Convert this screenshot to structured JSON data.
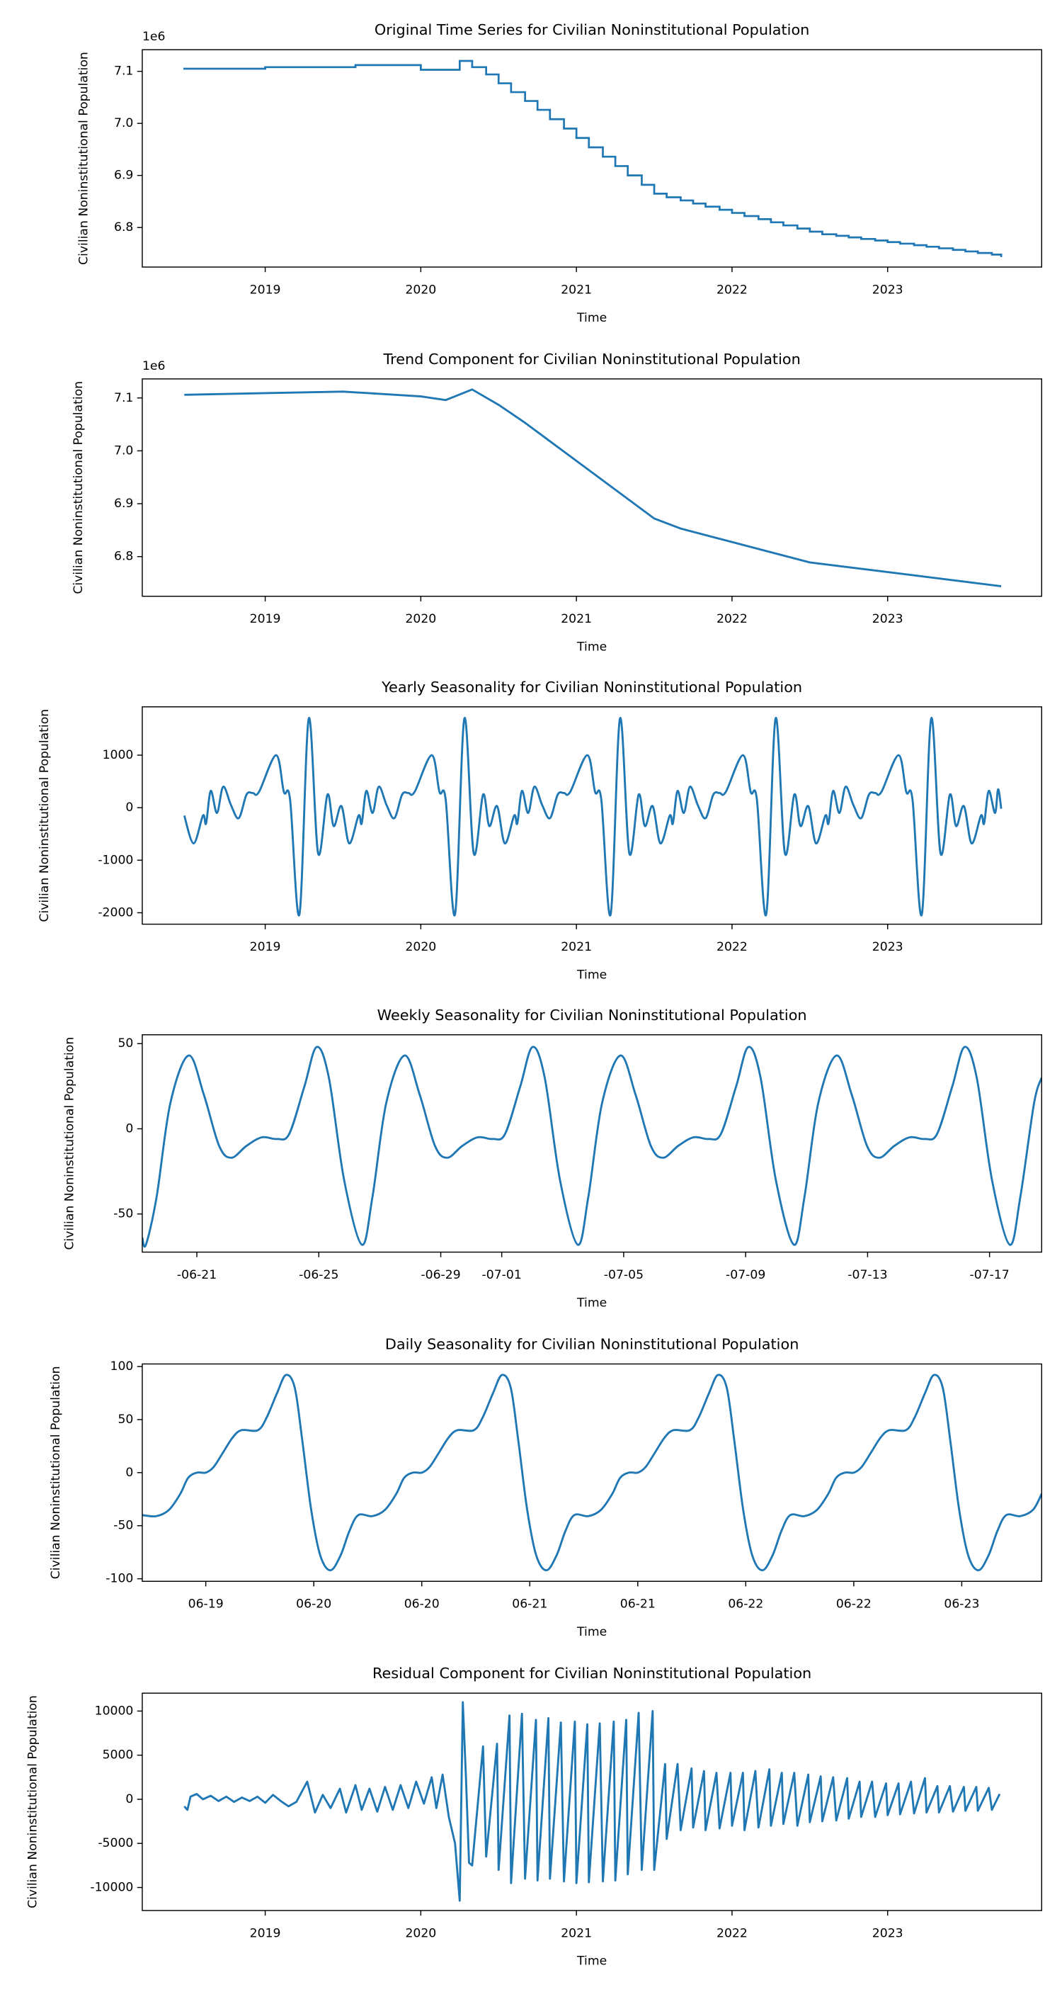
{
  "chart_data": [
    {
      "type": "line",
      "drawstyle": "steps-post",
      "title": "Original Time Series for Civilian Noninstitutional Population",
      "xlabel": "Time",
      "ylabel": "Civilian Noninstitutional Population",
      "offset_label": "1e6",
      "color": "#1f77b4",
      "x": [
        2018.48,
        2019.0,
        2019.58,
        2020.0,
        2020.25,
        2020.33,
        2020.42,
        2020.5,
        2020.58,
        2020.67,
        2020.75,
        2020.83,
        2020.92,
        2021.0,
        2021.08,
        2021.17,
        2021.25,
        2021.33,
        2021.42,
        2021.5,
        2021.58,
        2021.67,
        2021.75,
        2021.83,
        2021.92,
        2022.0,
        2022.08,
        2022.17,
        2022.25,
        2022.33,
        2022.42,
        2022.5,
        2022.58,
        2022.67,
        2022.75,
        2022.83,
        2022.92,
        2023.0,
        2023.08,
        2023.17,
        2023.25,
        2023.33,
        2023.42,
        2023.5,
        2023.58,
        2023.67,
        2023.73
      ],
      "values": [
        7.105,
        7.108,
        7.112,
        7.103,
        7.12,
        7.108,
        7.094,
        7.077,
        7.06,
        7.043,
        7.026,
        7.008,
        6.99,
        6.972,
        6.954,
        6.936,
        6.918,
        6.9,
        6.882,
        6.865,
        6.858,
        6.852,
        6.846,
        6.84,
        6.834,
        6.828,
        6.822,
        6.816,
        6.81,
        6.804,
        6.798,
        6.792,
        6.787,
        6.784,
        6.781,
        6.778,
        6.775,
        6.772,
        6.769,
        6.766,
        6.763,
        6.76,
        6.757,
        6.754,
        6.751,
        6.748,
        6.745
      ],
      "xlim": [
        2018.21,
        2023.99
      ],
      "xticks": [
        2019,
        2020,
        2021,
        2022,
        2023
      ],
      "ylim": [
        6.724,
        7.1415
      ],
      "yticks": [
        6.8,
        6.9,
        {
          "value": 7.0,
          "label": "7.0"
        },
        7.1
      ]
    },
    {
      "type": "line",
      "title": "Trend Component for Civilian Noninstitutional Population",
      "xlabel": "Time",
      "ylabel": "Civilian Noninstitutional Population",
      "offset_label": "1e6",
      "color": "#1f77b4",
      "x": [
        2018.48,
        2019.5,
        2020.0,
        2020.16,
        2020.33,
        2020.5,
        2020.67,
        2021.5,
        2021.67,
        2022.5,
        2023.73
      ],
      "values": [
        7.106,
        7.112,
        7.103,
        7.096,
        7.116,
        7.087,
        7.053,
        6.872,
        6.853,
        6.789,
        6.744
      ],
      "xlim": [
        2018.21,
        2023.99
      ],
      "xticks": [
        2019,
        2020,
        2021,
        2022,
        2023
      ],
      "ylim": [
        6.725,
        7.136
      ],
      "yticks": [
        6.8,
        6.9,
        {
          "value": 7.0,
          "label": "7.0"
        },
        7.1
      ]
    },
    {
      "type": "line",
      "title": "Yearly Seasonality for Civilian Noninstitutional Population",
      "xlabel": "Time",
      "ylabel": "Civilian Noninstitutional Population",
      "color": "#1f77b4",
      "x": [
        2018.48,
        2018.54,
        2018.6,
        2018.62,
        2018.65,
        2018.69,
        2018.73,
        2018.78,
        2018.83,
        2018.88,
        2018.92,
        2018.96,
        2019.07,
        2019.12,
        2019.16,
        2019.22,
        2019.28,
        2019.34,
        2019.4,
        2019.44,
        2019.49,
        2019.54,
        2019.6,
        2019.62,
        2019.65,
        2019.69,
        2019.73,
        2019.78,
        2019.83,
        2019.88,
        2019.92,
        2019.96,
        2020.07,
        2020.12,
        2020.16,
        2020.22,
        2020.28,
        2020.34,
        2020.4,
        2020.44,
        2020.49,
        2020.54,
        2020.6,
        2020.62,
        2020.65,
        2020.69,
        2020.73,
        2020.78,
        2020.83,
        2020.88,
        2020.92,
        2020.96,
        2021.07,
        2021.12,
        2021.16,
        2021.22,
        2021.28,
        2021.34,
        2021.4,
        2021.44,
        2021.49,
        2021.54,
        2021.6,
        2021.62,
        2021.65,
        2021.69,
        2021.73,
        2021.78,
        2021.83,
        2021.88,
        2021.92,
        2021.96,
        2022.07,
        2022.12,
        2022.16,
        2022.22,
        2022.28,
        2022.34,
        2022.4,
        2022.44,
        2022.49,
        2022.54,
        2022.6,
        2022.62,
        2022.65,
        2022.69,
        2022.73,
        2022.78,
        2022.83,
        2022.88,
        2022.92,
        2022.96,
        2023.07,
        2023.12,
        2023.16,
        2023.22,
        2023.28,
        2023.34,
        2023.4,
        2023.44,
        2023.49,
        2023.54,
        2023.6,
        2023.62,
        2023.65,
        2023.69,
        2023.71,
        2023.73
      ],
      "values": [
        -150,
        -680,
        -150,
        -300,
        320,
        -100,
        400,
        50,
        -200,
        250,
        280,
        300,
        1000,
        300,
        150,
        -2030,
        1700,
        -870,
        250,
        -350,
        30,
        -680,
        -150,
        -300,
        320,
        -100,
        400,
        50,
        -200,
        250,
        280,
        300,
        1000,
        300,
        150,
        -2030,
        1700,
        -870,
        250,
        -350,
        30,
        -680,
        -150,
        -300,
        320,
        -100,
        400,
        50,
        -200,
        250,
        280,
        300,
        1000,
        300,
        150,
        -2030,
        1700,
        -870,
        250,
        -350,
        30,
        -680,
        -150,
        -300,
        320,
        -100,
        400,
        50,
        -200,
        250,
        280,
        300,
        1000,
        300,
        150,
        -2030,
        1700,
        -870,
        250,
        -350,
        30,
        -680,
        -150,
        -300,
        320,
        -100,
        400,
        50,
        -200,
        250,
        280,
        300,
        1000,
        300,
        150,
        -2030,
        1700,
        -870,
        250,
        -350,
        30,
        -680,
        -150,
        -300,
        320,
        -100,
        350,
        -20
      ],
      "xlim": [
        2018.21,
        2023.99
      ],
      "xticks": [
        2019,
        2020,
        2021,
        2022,
        2023
      ],
      "ylim": [
        -2218,
        1920
      ],
      "yticks": [
        -2000,
        -1000,
        0,
        1000
      ]
    },
    {
      "type": "line",
      "title": "Weekly Seasonality for Civilian Noninstitutional Population",
      "xlabel": "Time",
      "ylabel": "Civilian Noninstitutional Population",
      "color": "#1f77b4",
      "x": [
        19.21,
        19.33,
        19.68,
        20.13,
        20.73,
        21.23,
        21.73,
        22.13,
        22.63,
        23.13,
        23.63,
        24.03,
        24.53,
        24.93,
        25.33,
        25.83,
        26.41,
        26.76,
        27.21,
        27.81,
        28.31,
        28.81,
        29.21,
        29.71,
        30.21,
        30.71,
        31.11,
        31.61,
        32.01,
        32.41,
        32.91,
        33.49,
        33.84,
        34.29,
        34.89,
        35.39,
        35.89,
        36.29,
        36.79,
        37.29,
        37.79,
        38.19,
        38.69,
        39.09,
        39.49,
        39.99,
        40.58,
        40.93,
        41.38,
        41.98,
        42.48,
        42.98,
        43.38,
        43.88,
        44.38,
        44.88,
        45.28,
        45.78,
        46.18,
        46.58,
        47.08,
        47.66,
        48.01,
        48.46,
        48.71
      ],
      "values": [
        -64,
        -68,
        -40,
        15,
        43,
        20,
        -10,
        -17,
        -10,
        -5,
        -6,
        -3,
        25,
        48,
        30,
        -30,
        -68,
        -40,
        15,
        43,
        20,
        -10,
        -17,
        -10,
        -5,
        -6,
        -3,
        25,
        48,
        30,
        -30,
        -68,
        -40,
        15,
        43,
        20,
        -10,
        -17,
        -10,
        -5,
        -6,
        -3,
        25,
        48,
        30,
        -30,
        -68,
        -40,
        15,
        43,
        20,
        -10,
        -17,
        -10,
        -5,
        -6,
        -3,
        25,
        48,
        30,
        -30,
        -68,
        -40,
        15,
        30
      ],
      "xlim": [
        19.21,
        48.71
      ],
      "xticks": [
        {
          "value": 21,
          "label": "-06-21"
        },
        {
          "value": 25,
          "label": "-06-25"
        },
        {
          "value": 29,
          "label": "-06-29"
        },
        {
          "value": 31,
          "label": "-07-01"
        },
        {
          "value": 35,
          "label": "-07-05"
        },
        {
          "value": 39,
          "label": "-07-09"
        },
        {
          "value": 43,
          "label": "-07-13"
        },
        {
          "value": 47,
          "label": "-07-17"
        }
      ],
      "ylim": [
        -72.4,
        55.2
      ],
      "yticks": [
        -50,
        0,
        50
      ]
    },
    {
      "type": "line",
      "title": "Daily Seasonality for Civilian Noninstitutional Population",
      "xlabel": "Time",
      "ylabel": "Civilian Noninstitutional Population",
      "color": "#1f77b4",
      "x": [
        19.206,
        19.271,
        19.33,
        19.382,
        19.418,
        19.459,
        19.5,
        19.535,
        19.577,
        19.624,
        19.665,
        19.741,
        19.782,
        19.83,
        19.871,
        19.912,
        19.947,
        19.988,
        20.03,
        20.077,
        20.124,
        20.165,
        20.206,
        20.271,
        20.33,
        20.382,
        20.418,
        20.459,
        20.5,
        20.535,
        20.577,
        20.624,
        20.665,
        20.741,
        20.782,
        20.83,
        20.871,
        20.912,
        20.947,
        20.988,
        21.03,
        21.077,
        21.124,
        21.165,
        21.206,
        21.271,
        21.33,
        21.382,
        21.418,
        21.459,
        21.5,
        21.535,
        21.577,
        21.624,
        21.665,
        21.741,
        21.782,
        21.83,
        21.871,
        21.912,
        21.947,
        21.988,
        22.03,
        22.077,
        22.124,
        22.165,
        22.206,
        22.271,
        22.33,
        22.382,
        22.418,
        22.459,
        22.5,
        22.535,
        22.577,
        22.624,
        22.665,
        22.741,
        22.782,
        22.83,
        22.871,
        22.912,
        22.947,
        22.988,
        23.03,
        23.077,
        23.124,
        23.165,
        23.206,
        23.271,
        23.33,
        23.37
      ],
      "values": [
        -40,
        -41,
        -35,
        -20,
        -5,
        0,
        0,
        5,
        18,
        33,
        40,
        40,
        52,
        75,
        92,
        80,
        30,
        -35,
        -78,
        -92,
        -78,
        -55,
        -40,
        -41,
        -35,
        -20,
        -5,
        0,
        0,
        5,
        18,
        33,
        40,
        40,
        52,
        75,
        92,
        80,
        30,
        -35,
        -78,
        -92,
        -78,
        -55,
        -40,
        -41,
        -35,
        -20,
        -5,
        0,
        0,
        5,
        18,
        33,
        40,
        40,
        52,
        75,
        92,
        80,
        30,
        -35,
        -78,
        -92,
        -78,
        -55,
        -40,
        -41,
        -35,
        -20,
        -5,
        0,
        0,
        5,
        18,
        33,
        40,
        40,
        52,
        75,
        92,
        80,
        30,
        -35,
        -78,
        -92,
        -78,
        -55,
        -40,
        -41,
        -35,
        -20
      ],
      "xlim": [
        19.206,
        23.37
      ],
      "xticks": [
        {
          "value": 19.5,
          "label": "06-19"
        },
        {
          "value": 20,
          "label": "06-20"
        },
        {
          "value": 20.5,
          "label": "06-20"
        },
        {
          "value": 21,
          "label": "06-21"
        },
        {
          "value": 21.5,
          "label": "06-21"
        },
        {
          "value": 22,
          "label": "06-22"
        },
        {
          "value": 22.5,
          "label": "06-22"
        },
        {
          "value": 23,
          "label": "06-23"
        }
      ],
      "ylim": [
        -102.4,
        102.4
      ],
      "yticks": [
        -100,
        -50,
        0,
        50,
        100
      ]
    },
    {
      "type": "line",
      "title": "Residual Component for Civilian Noninstitutional Population",
      "xlabel": "Time",
      "ylabel": "Civilian Noninstitutional Population",
      "color": "#1f77b4",
      "x": [
        2018.48,
        2018.5,
        2018.52,
        2018.56,
        2018.6,
        2018.65,
        2018.7,
        2018.75,
        2018.8,
        2018.85,
        2018.9,
        2018.95,
        2019.0,
        2019.05,
        2019.1,
        2019.15,
        2019.2,
        2019.27,
        2019.32,
        2019.37,
        2019.42,
        2019.48,
        2019.52,
        2019.58,
        2019.62,
        2019.67,
        2019.72,
        2019.77,
        2019.82,
        2019.87,
        2019.92,
        2019.97,
        2020.02,
        2020.07,
        2020.1,
        2020.14,
        2020.18,
        2020.22,
        2020.25,
        2020.27,
        2020.29,
        2020.31,
        2020.33,
        2020.4,
        2020.42,
        2020.49,
        2020.5,
        2020.57,
        2020.58,
        2020.65,
        2020.67,
        2020.74,
        2020.75,
        2020.82,
        2020.83,
        2020.9,
        2020.92,
        2020.99,
        2021.0,
        2021.07,
        2021.08,
        2021.15,
        2021.17,
        2021.24,
        2021.25,
        2021.32,
        2021.33,
        2021.4,
        2021.42,
        2021.49,
        2021.5,
        2021.57,
        2021.58,
        2021.65,
        2021.67,
        2021.74,
        2021.75,
        2021.82,
        2021.83,
        2021.9,
        2021.92,
        2021.99,
        2022.0,
        2022.07,
        2022.08,
        2022.15,
        2022.17,
        2022.24,
        2022.25,
        2022.32,
        2022.33,
        2022.4,
        2022.42,
        2022.49,
        2022.5,
        2022.57,
        2022.58,
        2022.65,
        2022.67,
        2022.74,
        2022.75,
        2022.82,
        2022.83,
        2022.9,
        2022.92,
        2022.99,
        2023.0,
        2023.07,
        2023.08,
        2023.15,
        2023.17,
        2023.24,
        2023.25,
        2023.32,
        2023.33,
        2023.4,
        2023.42,
        2023.49,
        2023.5,
        2023.57,
        2023.58,
        2023.65,
        2023.67,
        2023.72
      ],
      "values": [
        -800,
        -1200,
        300,
        600,
        0,
        400,
        -200,
        300,
        -300,
        200,
        -200,
        300,
        -400,
        500,
        -200,
        -800,
        -300,
        2000,
        -1500,
        500,
        -1000,
        1200,
        -1500,
        1600,
        -1200,
        1200,
        -1400,
        1400,
        -1200,
        1600,
        -1000,
        2000,
        -500,
        2500,
        -1000,
        2800,
        -2000,
        -5000,
        -11500,
        11000,
        2500,
        -7200,
        -7500,
        6000,
        -6500,
        6300,
        -8000,
        9500,
        -9500,
        9700,
        -9000,
        9000,
        -9200,
        9200,
        -9000,
        8700,
        -9300,
        8800,
        -9500,
        8500,
        -9400,
        8600,
        -9300,
        8800,
        -9200,
        9000,
        -8500,
        9800,
        -8000,
        10000,
        -8000,
        4000,
        -4500,
        4000,
        -3500,
        3500,
        -3200,
        3200,
        -3500,
        3000,
        -3300,
        3000,
        -3000,
        3000,
        -3500,
        3200,
        -3200,
        3400,
        -3000,
        3000,
        -2800,
        3000,
        -3000,
        2800,
        -2600,
        2600,
        -2500,
        2500,
        -2400,
        2400,
        -2200,
        2000,
        -2000,
        2000,
        -2000,
        1800,
        -1800,
        1800,
        -1700,
        2000,
        -1600,
        2400,
        -1500,
        1500,
        -1500,
        1500,
        -1400,
        1400,
        -1300,
        1400,
        -1300,
        1300,
        -1200,
        600
      ],
      "xlim": [
        2018.21,
        2023.99
      ],
      "xticks": [
        2019,
        2020,
        2021,
        2022,
        2023
      ],
      "ylim": [
        -12609,
        12029
      ],
      "yticks": [
        -10000,
        -5000,
        0,
        5000,
        10000
      ]
    }
  ]
}
